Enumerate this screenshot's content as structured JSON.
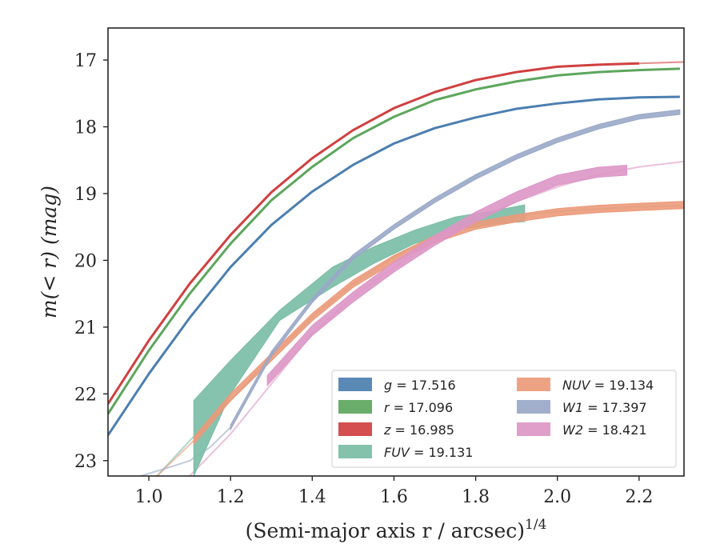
{
  "chart_data": {
    "type": "line",
    "xlabel": "(Semi-major axis r / arcsec)",
    "xlabel_exponent": "1/4",
    "ylabel": "m(< r) (mag)",
    "xlim": [
      0.9,
      2.31
    ],
    "ylim": [
      23.23,
      16.52
    ],
    "y_inverted": true,
    "grid": false,
    "legend_placement": "lower-right",
    "x_ticks": [
      "1.0",
      "1.2",
      "1.4",
      "1.6",
      "1.8",
      "2.0",
      "2.2"
    ],
    "y_ticks": [
      "17",
      "18",
      "19",
      "20",
      "21",
      "22",
      "23"
    ],
    "series": [
      {
        "name": "g = 17.516",
        "legend_var": "g",
        "legend_value": "17.516",
        "color": "#4c7fb0",
        "kind": "line",
        "band_width": 0.02,
        "x": [
          0.9,
          1.0,
          1.1,
          1.2,
          1.3,
          1.4,
          1.5,
          1.6,
          1.7,
          1.8,
          1.9,
          2.0,
          2.1,
          2.2,
          2.3
        ],
        "y": [
          22.62,
          21.7,
          20.86,
          20.1,
          19.47,
          18.97,
          18.57,
          18.25,
          18.02,
          17.86,
          17.73,
          17.65,
          17.59,
          17.56,
          17.55
        ]
      },
      {
        "name": "r = 17.096",
        "legend_var": "r",
        "legend_value": "17.096",
        "color": "#5da65d",
        "kind": "line",
        "band_width": 0.02,
        "x": [
          0.9,
          1.0,
          1.1,
          1.2,
          1.3,
          1.4,
          1.5,
          1.6,
          1.7,
          1.8,
          1.9,
          2.0,
          2.1,
          2.2,
          2.3
        ],
        "y": [
          22.3,
          21.35,
          20.5,
          19.75,
          19.1,
          18.6,
          18.17,
          17.85,
          17.6,
          17.44,
          17.32,
          17.23,
          17.18,
          17.15,
          17.13
        ]
      },
      {
        "name": "z = 16.985",
        "legend_var": "z",
        "legend_value": "16.985",
        "color": "#d04040",
        "kind": "line",
        "band_width": 0.02,
        "x": [
          0.9,
          1.0,
          1.1,
          1.2,
          1.3,
          1.4,
          1.5,
          1.6,
          1.7,
          1.8,
          1.9,
          2.0,
          2.1,
          2.2
        ],
        "y": [
          22.15,
          21.2,
          20.35,
          19.62,
          18.98,
          18.47,
          18.05,
          17.72,
          17.48,
          17.3,
          17.18,
          17.1,
          17.07,
          17.05
        ],
        "model_x": [
          2.2,
          2.31
        ],
        "model_y": [
          17.05,
          17.03
        ]
      },
      {
        "name": "FUV = 19.131",
        "legend_var": "FUV",
        "legend_value": "19.131",
        "color": "#79bda5",
        "kind": "band",
        "x": [
          1.11,
          1.2,
          1.32,
          1.45,
          1.55,
          1.65,
          1.75,
          1.85,
          1.92
        ],
        "y_low": [
          23.23,
          22.0,
          20.9,
          20.4,
          20.05,
          19.75,
          19.55,
          19.45,
          19.42
        ],
        "y_high": [
          22.1,
          21.5,
          20.75,
          20.1,
          19.8,
          19.55,
          19.35,
          19.25,
          19.17
        ],
        "model_x": [
          1.02,
          1.1,
          1.2,
          1.3,
          1.4,
          1.5,
          1.6,
          1.7,
          1.8,
          1.9,
          2.0,
          2.1,
          2.2,
          2.31
        ],
        "model_y": [
          23.23,
          22.7,
          22.1,
          21.45,
          20.85,
          20.35,
          19.95,
          19.65,
          19.45,
          19.33,
          19.27,
          19.23,
          19.2,
          19.18
        ]
      },
      {
        "name": "NUV = 19.134",
        "legend_var": "NUV",
        "legend_value": "19.134",
        "color": "#ec9a7a",
        "kind": "band",
        "band_width": 0.11,
        "x": [
          1.11,
          1.2,
          1.3,
          1.4,
          1.5,
          1.6,
          1.7,
          1.8,
          1.9,
          2.0,
          2.1,
          2.2,
          2.31
        ],
        "y": [
          22.7,
          22.05,
          21.45,
          20.85,
          20.35,
          19.98,
          19.68,
          19.48,
          19.37,
          19.28,
          19.23,
          19.2,
          19.17
        ],
        "model_x": [
          1.02,
          1.11
        ],
        "model_y": [
          23.23,
          22.7
        ]
      },
      {
        "name": "W1 = 17.397",
        "legend_var": "W1",
        "legend_value": "17.397",
        "color": "#9aa8c8",
        "kind": "band",
        "band_width": 0.07,
        "x": [
          1.2,
          1.3,
          1.4,
          1.5,
          1.6,
          1.7,
          1.8,
          1.9,
          2.0,
          2.1,
          2.2,
          2.3
        ],
        "y": [
          22.5,
          21.4,
          20.6,
          19.95,
          19.5,
          19.1,
          18.75,
          18.45,
          18.2,
          18.0,
          17.85,
          17.78
        ],
        "model_x": [
          0.98,
          1.05,
          1.1,
          1.15,
          1.2
        ],
        "model_y": [
          23.23,
          23.1,
          23.0,
          22.8,
          22.5
        ]
      },
      {
        "name": "W2 = 18.421",
        "legend_var": "W2",
        "legend_value": "18.421",
        "color": "#dd96c6",
        "kind": "band",
        "band_width": 0.15,
        "x": [
          1.29,
          1.4,
          1.5,
          1.6,
          1.7,
          1.8,
          1.9,
          2.0,
          2.1,
          2.17
        ],
        "y": [
          21.8,
          21.05,
          20.55,
          20.1,
          19.7,
          19.35,
          19.05,
          18.8,
          18.68,
          18.65
        ],
        "model_x": [
          1.1,
          1.2,
          1.3,
          1.4,
          1.5,
          1.6,
          1.7,
          1.8,
          1.9,
          2.0,
          2.1,
          2.2,
          2.31
        ],
        "model_y": [
          23.23,
          22.6,
          21.85,
          21.1,
          20.55,
          20.1,
          19.72,
          19.4,
          19.12,
          18.9,
          18.72,
          18.6,
          18.52
        ]
      }
    ]
  }
}
